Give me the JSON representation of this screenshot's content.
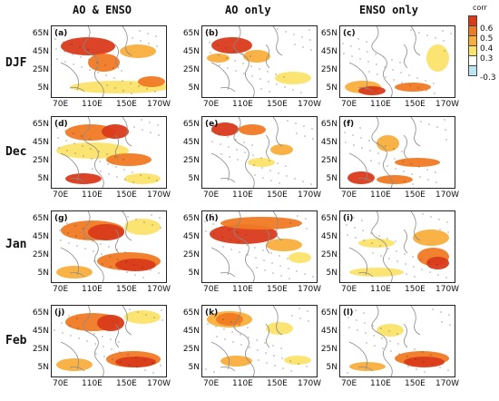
{
  "columns": [
    "AO & ENSO",
    "AO only",
    "ENSO only"
  ],
  "rows": [
    "DJF",
    "Dec",
    "Jan",
    "Feb"
  ],
  "panel_labels": [
    "(a)",
    "(b)",
    "(c)",
    "(d)",
    "(e)",
    "(f)",
    "(g)",
    "(h)",
    "(i)",
    "(j)",
    "(k)",
    "(l)"
  ],
  "lat_ticks": [
    "65N",
    "45N",
    "25N",
    "5N"
  ],
  "lon_ticks": [
    "70E",
    "110E",
    "150E",
    "170W"
  ],
  "colorbar": {
    "title": "corr",
    "labels": [
      "0.6",
      "0.5",
      "0.4",
      "0.3",
      "-0.3"
    ],
    "colors": [
      "#d93a1a",
      "#f07a24",
      "#f8ae3c",
      "#fbe36a",
      "#ffffff",
      "#bde4f2"
    ]
  },
  "colors": {
    "strong": "#d93a1a",
    "medium": "#f07a24",
    "light": "#f8ae3c",
    "weak": "#fbe36a",
    "coastline": "#8a8a8a",
    "stipple": "#222222"
  }
}
